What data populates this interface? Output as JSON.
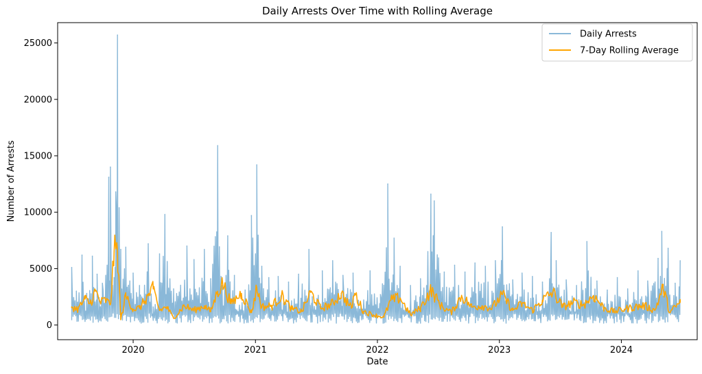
{
  "chart_data": {
    "type": "line",
    "title": "Daily Arrests Over Time with Rolling Average",
    "xlabel": "Date",
    "ylabel": "Number of Arrests",
    "x_ticks": [
      "2020",
      "2021",
      "2022",
      "2023",
      "2024"
    ],
    "y_ticks": [
      "0",
      "5000",
      "10000",
      "15000",
      "20000",
      "25000"
    ],
    "xlim": [
      "2019-05-20",
      "2024-08-15"
    ],
    "ylim": [
      -1300,
      26800
    ],
    "grid": false,
    "legend_position": "top-right",
    "series": [
      {
        "name": "Daily Arrests",
        "color": "#8ab8d8",
        "x": [
          "2019-07-01",
          "2019-07-15",
          "2019-08-01",
          "2019-08-15",
          "2019-09-01",
          "2019-09-15",
          "2019-10-01",
          "2019-10-20",
          "2019-10-25",
          "2019-11-05",
          "2019-11-10",
          "2019-11-15",
          "2019-11-25",
          "2019-12-10",
          "2020-01-01",
          "2020-01-20",
          "2020-02-15",
          "2020-03-01",
          "2020-03-20",
          "2020-04-05",
          "2020-05-01",
          "2020-06-10",
          "2020-07-01",
          "2020-08-01",
          "2020-08-20",
          "2020-09-10",
          "2020-09-20",
          "2020-10-10",
          "2020-10-30",
          "2020-12-01",
          "2020-12-20",
          "2021-01-05",
          "2021-01-20",
          "2021-02-10",
          "2021-03-10",
          "2021-04-10",
          "2021-05-10",
          "2021-06-10",
          "2021-06-20",
          "2021-07-20",
          "2021-08-20",
          "2021-09-20",
          "2021-10-20",
          "2021-11-05",
          "2021-12-10",
          "2022-01-10",
          "2022-02-01",
          "2022-02-20",
          "2022-03-10",
          "2022-04-10",
          "2022-05-10",
          "2022-06-10",
          "2022-06-20",
          "2022-07-20",
          "2022-08-20",
          "2022-09-20",
          "2022-10-20",
          "2022-11-20",
          "2022-12-20",
          "2023-01-10",
          "2023-02-10",
          "2023-03-10",
          "2023-04-10",
          "2023-05-10",
          "2023-06-05",
          "2023-06-20",
          "2023-07-20",
          "2023-08-20",
          "2023-09-20",
          "2023-10-20",
          "2023-11-20",
          "2023-12-20",
          "2024-01-20",
          "2024-02-20",
          "2024-03-20",
          "2024-04-20",
          "2024-05-01",
          "2024-05-20",
          "2024-06-10",
          "2024-06-25"
        ],
        "values": [
          5100,
          3000,
          6200,
          2800,
          6100,
          4500,
          3700,
          13100,
          14000,
          4200,
          11800,
          25700,
          6700,
          6900,
          4600,
          3500,
          7200,
          1600,
          6300,
          9800,
          3200,
          7000,
          5800,
          6700,
          4100,
          15900,
          4300,
          7900,
          4400,
          3100,
          9700,
          14200,
          5200,
          4200,
          4300,
          3800,
          4500,
          6700,
          2500,
          4800,
          5700,
          4400,
          4600,
          2200,
          4800,
          2700,
          12500,
          7700,
          5200,
          3500,
          4100,
          11600,
          11000,
          4700,
          5300,
          4700,
          5500,
          5200,
          5700,
          8700,
          4000,
          4600,
          4300,
          3800,
          8200,
          5700,
          4000,
          3500,
          7400,
          3900,
          3100,
          4200,
          3200,
          4800,
          3900,
          5900,
          8300,
          6800,
          3700,
          5700
        ]
      },
      {
        "name": "7-Day Rolling Average",
        "color": "#ffa500",
        "x": [
          "2019-07-01",
          "2019-07-20",
          "2019-08-10",
          "2019-08-25",
          "2019-09-10",
          "2019-09-25",
          "2019-10-10",
          "2019-10-25",
          "2019-11-05",
          "2019-11-15",
          "2019-11-25",
          "2019-12-10",
          "2020-01-01",
          "2020-01-20",
          "2020-02-15",
          "2020-03-01",
          "2020-03-20",
          "2020-04-10",
          "2020-05-01",
          "2020-06-01",
          "2020-07-01",
          "2020-08-01",
          "2020-08-20",
          "2020-09-10",
          "2020-09-25",
          "2020-10-20",
          "2020-11-20",
          "2020-12-20",
          "2021-01-05",
          "2021-01-20",
          "2021-02-20",
          "2021-03-20",
          "2021-04-20",
          "2021-05-20",
          "2021-06-15",
          "2021-07-15",
          "2021-08-15",
          "2021-09-15",
          "2021-10-15",
          "2021-10-25",
          "2021-11-20",
          "2021-12-20",
          "2022-01-20",
          "2022-02-10",
          "2022-03-10",
          "2022-04-10",
          "2022-05-10",
          "2022-06-10",
          "2022-07-10",
          "2022-08-10",
          "2022-09-10",
          "2022-10-10",
          "2022-11-10",
          "2022-12-10",
          "2023-01-10",
          "2023-02-10",
          "2023-03-10",
          "2023-04-10",
          "2023-05-10",
          "2023-06-10",
          "2023-07-10",
          "2023-08-10",
          "2023-09-10",
          "2023-10-10",
          "2023-11-10",
          "2023-12-10",
          "2024-01-10",
          "2024-02-10",
          "2024-03-10",
          "2024-04-10",
          "2024-05-05",
          "2024-05-25",
          "2024-06-25"
        ],
        "values": [
          1600,
          1400,
          2300,
          1900,
          3000,
          2000,
          2200,
          1800,
          6500,
          6600,
          500,
          2600,
          1400,
          1500,
          2600,
          3200,
          1300,
          1600,
          600,
          1700,
          1300,
          1700,
          1200,
          3000,
          3700,
          1900,
          2800,
          1100,
          3300,
          1600,
          1700,
          2600,
          1400,
          1200,
          2900,
          1500,
          1800,
          2800,
          1500,
          2800,
          1200,
          900,
          700,
          2200,
          2400,
          900,
          1500,
          3100,
          1700,
          1100,
          2600,
          1600,
          1700,
          1500,
          2700,
          1300,
          1900,
          1300,
          2200,
          2900,
          1600,
          2000,
          1800,
          2600,
          1500,
          1200,
          1400,
          1600,
          1700,
          1300,
          3300,
          1100,
          2000
        ]
      }
    ]
  }
}
